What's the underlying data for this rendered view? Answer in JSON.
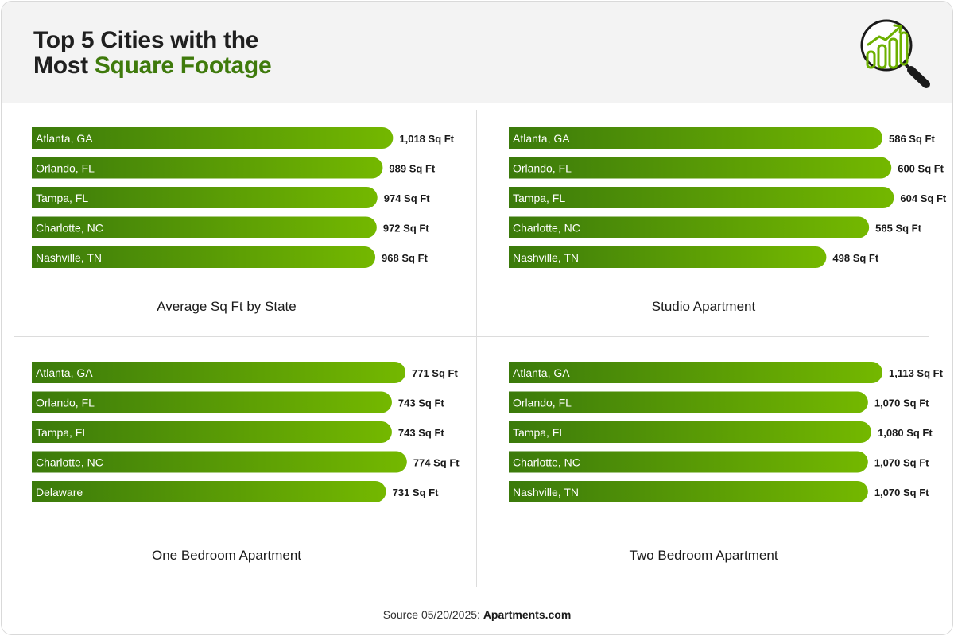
{
  "header": {
    "title_line1": "Top 5 Cities with the",
    "title_line2_prefix": "Most ",
    "title_line2_highlight": "Square Footage"
  },
  "footer": {
    "source_prefix": "Source 05/20/2025: ",
    "source_name": "Apartments.com"
  },
  "colors": {
    "bar_start": "#3b7a0b",
    "bar_end": "#74b800",
    "title_highlight": "#3f7a0c"
  },
  "chart_data": [
    {
      "type": "bar",
      "orientation": "horizontal",
      "title": "Average Sq Ft by State",
      "categories": [
        "Atlanta, GA",
        "Orlando, FL",
        "Tampa, FL",
        "Charlotte, NC",
        "Nashville, TN"
      ],
      "values": [
        1018,
        989,
        974,
        972,
        968
      ],
      "value_labels": [
        "1,018 Sq Ft",
        "989 Sq Ft",
        "974 Sq Ft",
        "972 Sq Ft",
        "968 Sq Ft"
      ],
      "xlim": [
        0,
        1053
      ]
    },
    {
      "type": "bar",
      "orientation": "horizontal",
      "title": "Studio Apartment",
      "categories": [
        "Atlanta, GA",
        "Orlando, FL",
        "Tampa, FL",
        "Charlotte, NC",
        "Nashville, TN"
      ],
      "values": [
        586,
        600,
        604,
        565,
        498
      ],
      "value_labels": [
        "586 Sq Ft",
        "600 Sq Ft",
        "604 Sq Ft",
        "565 Sq Ft",
        "498 Sq Ft"
      ],
      "xlim": [
        0,
        586
      ]
    },
    {
      "type": "bar",
      "orientation": "horizontal",
      "title": "One Bedroom Apartment",
      "categories": [
        "Atlanta, GA",
        "Orlando, FL",
        "Tampa, FL",
        "Charlotte, NC",
        "Delaware"
      ],
      "values": [
        771,
        743,
        743,
        774,
        731
      ],
      "value_labels": [
        "771 Sq Ft",
        "743 Sq Ft",
        "743 Sq Ft",
        "774 Sq Ft",
        "731 Sq Ft"
      ],
      "xlim": [
        0,
        771
      ]
    },
    {
      "type": "bar",
      "orientation": "horizontal",
      "title": "Two Bedroom Apartment",
      "categories": [
        "Atlanta, GA",
        "Orlando, FL",
        "Tampa, FL",
        "Charlotte, NC",
        "Nashville, TN"
      ],
      "values": [
        1113,
        1070,
        1080,
        1070,
        1070
      ],
      "value_labels": [
        "1,113 Sq Ft",
        "1,070 Sq Ft",
        "1,080 Sq Ft",
        "1,070 Sq Ft",
        "1,070 Sq Ft"
      ],
      "xlim": [
        0,
        1113
      ]
    }
  ]
}
